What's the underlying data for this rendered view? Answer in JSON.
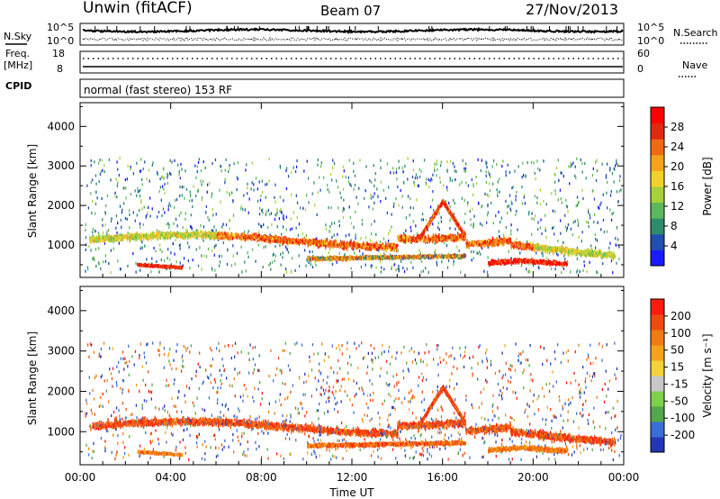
{
  "header": {
    "station": "Unwin (fitACF)",
    "beam": "Beam 07",
    "date": "27/Nov/2013"
  },
  "top_panels": {
    "nsky_label": "N.Sky",
    "nsearch_label": "N.Search",
    "nsky_ticks": [
      "10^5",
      "10^0"
    ],
    "freq_label_1": "Freq.",
    "freq_label_2": "[MHz]",
    "freq_ticks": [
      "18",
      "8"
    ],
    "nave_ticks": [
      "60",
      "0"
    ],
    "nave_label": "Nave",
    "cpid_label": "CPID",
    "cpid_text": "normal (fast stereo) 153 RF"
  },
  "axes": {
    "ylabel": "Slant Range [km]",
    "xlabel": "Time UT",
    "yticks": [
      "1000",
      "2000",
      "3000",
      "4000"
    ],
    "xticks": [
      "00:00",
      "04:00",
      "08:00",
      "12:00",
      "16:00",
      "20:00",
      "00:00"
    ]
  },
  "power_colorbar": {
    "label": "Power [dB]",
    "ticks": [
      "4",
      "8",
      "12",
      "16",
      "20",
      "24",
      "28"
    ],
    "colors": [
      "#1a1aff",
      "#1f4fb0",
      "#2e8c6e",
      "#5cb85c",
      "#a5d13b",
      "#f2d22a",
      "#f5a31a",
      "#ef6a14",
      "#e02a10",
      "#ff0000"
    ]
  },
  "velocity_colorbar": {
    "label": "Velocity [m s⁻¹]",
    "ticks": [
      "200",
      "100",
      "50",
      "15",
      "-15",
      "-50",
      "-100",
      "-200"
    ],
    "colors": [
      "#2436b8",
      "#3a6ed8",
      "#4fa84a",
      "#7cd24a",
      "#c8c8c8",
      "#f5d23a",
      "#f5a31a",
      "#f07a14",
      "#f04a10",
      "#ff1a10"
    ]
  },
  "chart_data": [
    {
      "type": "heatmap",
      "title": "Power",
      "xlabel": "Time UT",
      "ylabel": "Slant Range [km]",
      "xlim": [
        0,
        24
      ],
      "ylim": [
        180,
        4600
      ],
      "colorbar_range": [
        0,
        30
      ],
      "scatter_band": {
        "range_km": [
          1000,
          1200
        ],
        "time_h": [
          0,
          24
        ]
      },
      "main_echo_band": {
        "range_km_center": 1150,
        "time_h": [
          0.5,
          22.5
        ]
      },
      "near_range_echoes": [
        {
          "time_h": [
            2.5,
            4.5
          ],
          "range_km": 500
        },
        {
          "time_h": [
            18,
            21
          ],
          "range_km": 550
        }
      ],
      "peak_region": {
        "time_h": [
          15.5,
          16.5
        ],
        "range_km": [
          1500,
          2200
        ]
      }
    },
    {
      "type": "heatmap",
      "title": "Velocity",
      "xlabel": "Time UT",
      "ylabel": "Slant Range [km]",
      "xlim": [
        0,
        24
      ],
      "ylim": [
        180,
        4600
      ],
      "colorbar_range": [
        -200,
        200
      ],
      "main_echo_band": {
        "range_km_center": 1100,
        "time_h": [
          0.5,
          23.5
        ]
      },
      "near_range_echoes": [
        {
          "time_h": [
            2.5,
            4.5
          ],
          "range_km": 500
        },
        {
          "time_h": [
            18,
            21
          ],
          "range_km": 550
        }
      ],
      "peak_region": {
        "time_h": [
          15.5,
          16.5
        ],
        "range_km": [
          1500,
          2200
        ]
      }
    }
  ]
}
